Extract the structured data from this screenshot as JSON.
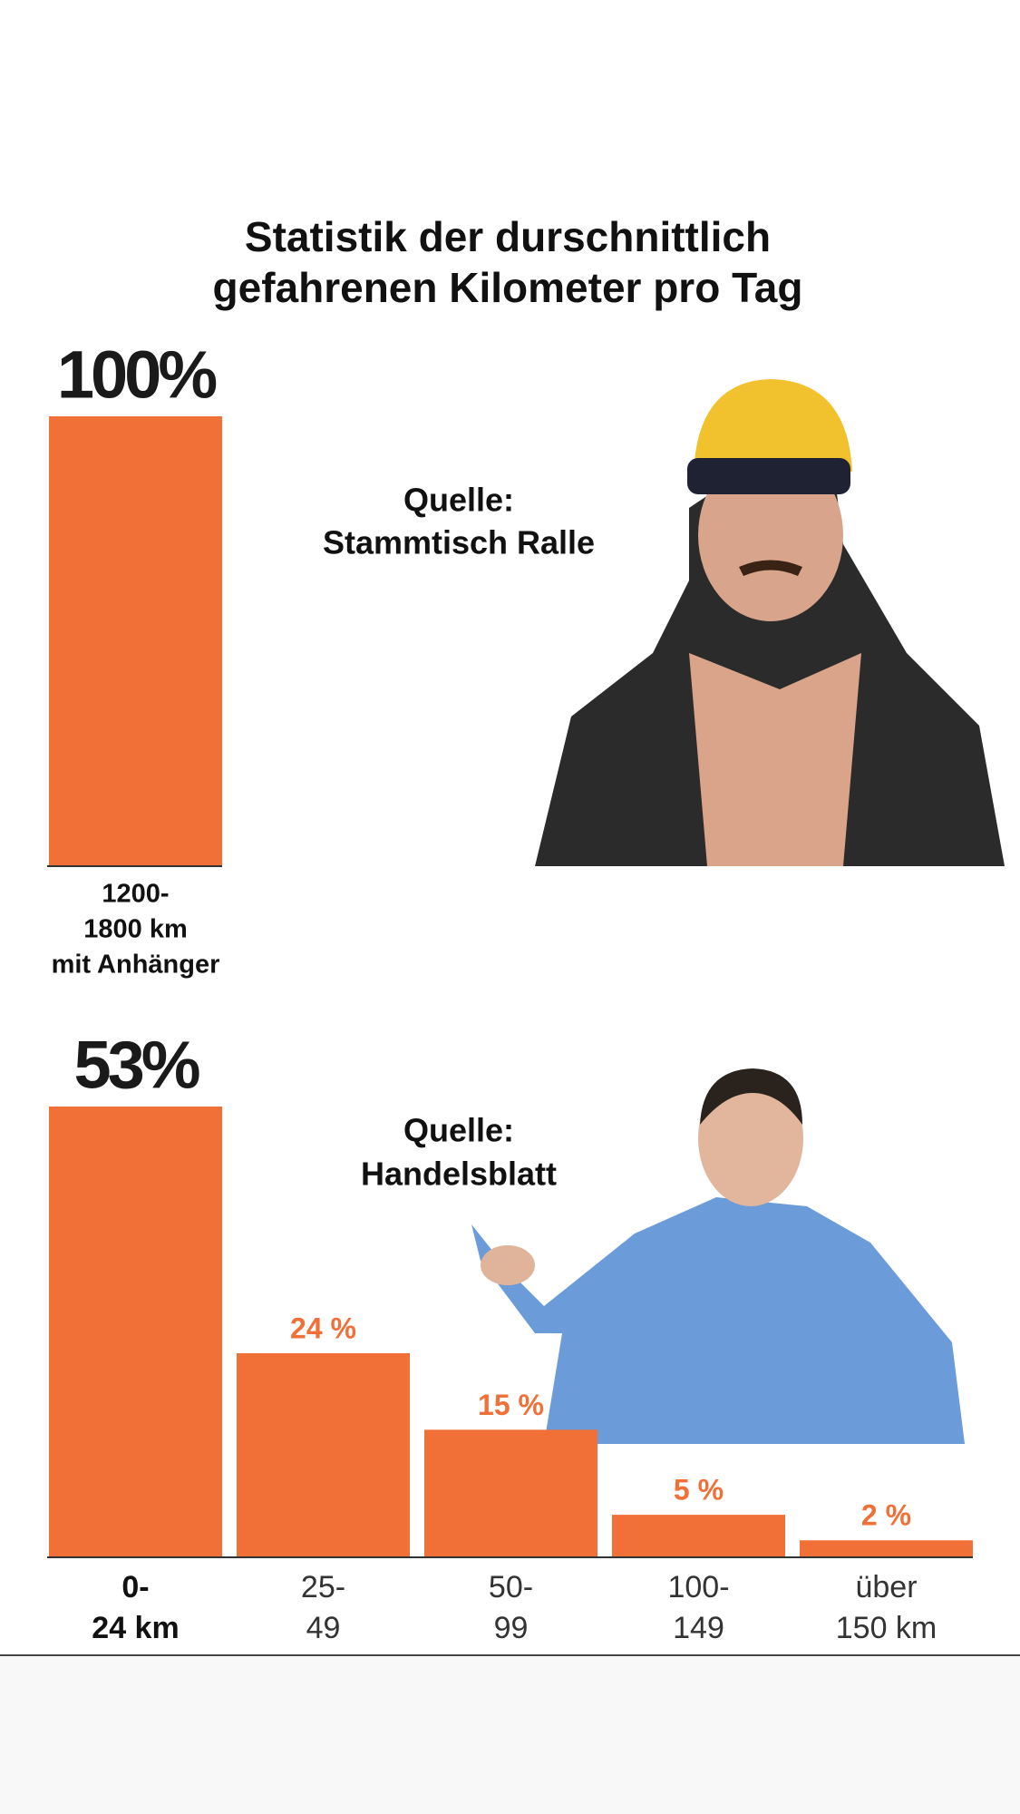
{
  "chart_data": [
    {
      "type": "bar",
      "title": [
        "Statistik der durschnittlich",
        "gefahrenen Kilometer pro Tag"
      ],
      "categories": [
        [
          "1200-",
          "1800 km",
          "mit Anhänger"
        ]
      ],
      "values": [
        100
      ],
      "value_labels": [
        "100%"
      ],
      "color": "#f07038",
      "ylim": [
        0,
        100
      ],
      "annotation": [
        "Quelle:",
        "Stammtisch Ralle"
      ]
    },
    {
      "type": "bar",
      "categories": [
        [
          "0-",
          "24 km"
        ],
        [
          "25-",
          "49"
        ],
        [
          "50-",
          "99"
        ],
        [
          "100-",
          "149"
        ],
        [
          "über",
          "150 km"
        ]
      ],
      "values": [
        53,
        24,
        15,
        5,
        2
      ],
      "value_labels": [
        "53%",
        "24 %",
        "15 %",
        "5 %",
        "2 %"
      ],
      "color": "#f07038",
      "ylim": [
        0,
        53
      ],
      "annotation": [
        "Quelle:",
        "Handelsblatt"
      ]
    }
  ]
}
